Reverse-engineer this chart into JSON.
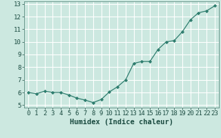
{
  "x": [
    0,
    1,
    2,
    3,
    4,
    5,
    6,
    7,
    8,
    9,
    10,
    11,
    12,
    13,
    14,
    15,
    16,
    17,
    18,
    19,
    20,
    21,
    22,
    23
  ],
  "y": [
    6.0,
    5.9,
    6.1,
    6.0,
    6.0,
    5.8,
    5.55,
    5.4,
    5.2,
    5.45,
    6.05,
    6.45,
    7.0,
    8.3,
    8.45,
    8.45,
    9.4,
    10.0,
    10.1,
    10.8,
    11.75,
    12.3,
    12.45,
    12.85
  ],
  "line_color": "#2e7d6e",
  "marker": "D",
  "marker_size": 2.2,
  "bg_color": "#cce8e0",
  "grid_color": "#ffffff",
  "xlabel": "Humidex (Indice chaleur)",
  "xlim": [
    -0.5,
    23.5
  ],
  "ylim": [
    4.8,
    13.2
  ],
  "yticks": [
    5,
    6,
    7,
    8,
    9,
    10,
    11,
    12,
    13
  ],
  "xticks": [
    0,
    1,
    2,
    3,
    4,
    5,
    6,
    7,
    8,
    9,
    10,
    11,
    12,
    13,
    14,
    15,
    16,
    17,
    18,
    19,
    20,
    21,
    22,
    23
  ],
  "label_fontsize": 7.5,
  "tick_fontsize": 6.5
}
